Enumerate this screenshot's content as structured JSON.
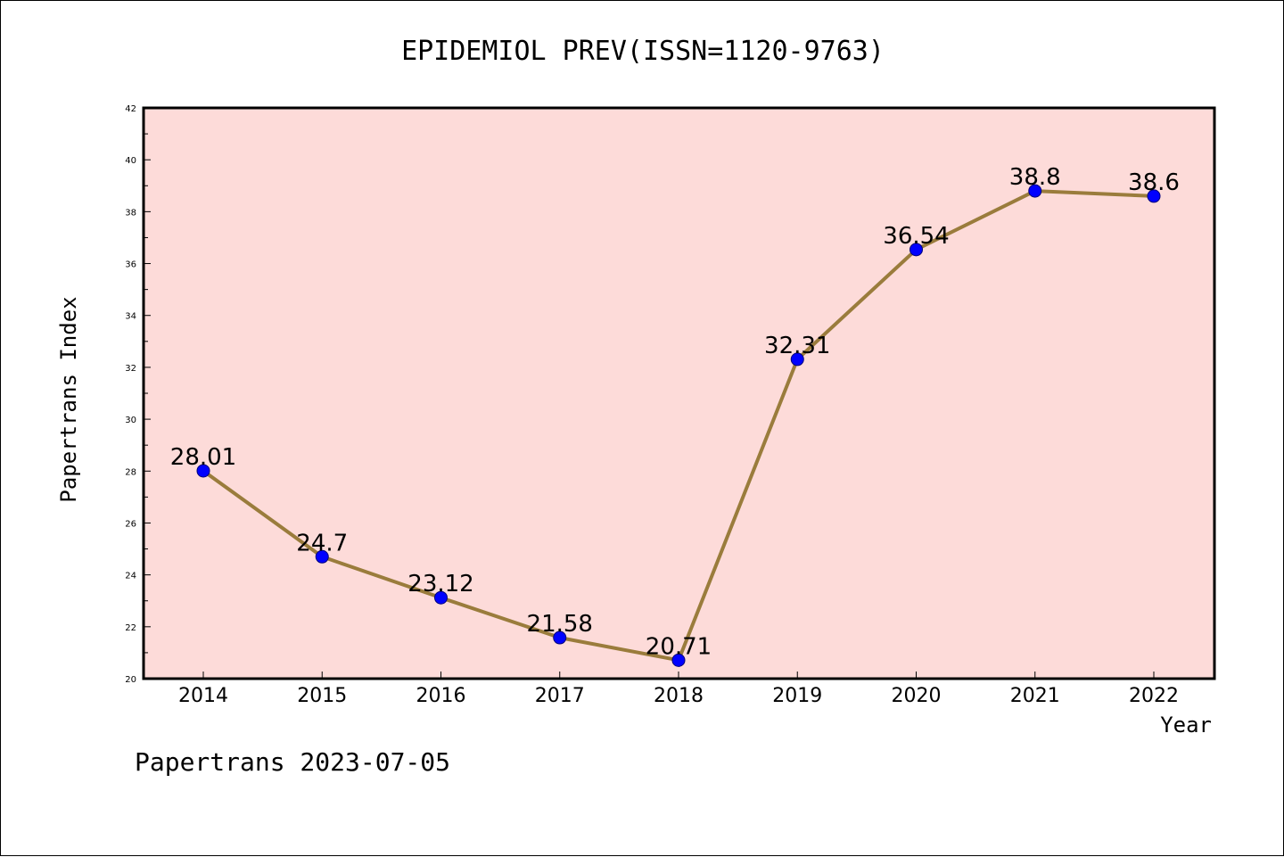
{
  "chart_data": {
    "type": "line",
    "title": "EPIDEMIOL PREV(ISSN=1120-9763)",
    "xlabel": "Year",
    "ylabel": "Papertrans Index",
    "x": [
      "2014",
      "2015",
      "2016",
      "2017",
      "2018",
      "2019",
      "2020",
      "2021",
      "2022"
    ],
    "series": [
      {
        "values": [
          28.01,
          24.7,
          23.12,
          21.58,
          20.71,
          32.31,
          36.54,
          38.8,
          38.6
        ],
        "data_labels": [
          "28.01",
          "24.7",
          "23.12",
          "21.58",
          "20.71",
          "32.31",
          "36.54",
          "38.8",
          "38.6"
        ]
      }
    ],
    "ylim": [
      20,
      42
    ],
    "yticks": [
      "20",
      "22",
      "24",
      "26",
      "28",
      "30",
      "32",
      "34",
      "36",
      "38",
      "40",
      "42"
    ],
    "grid": false,
    "colors": {
      "plot_background": "#fddbd9",
      "line": "#9a7c3c",
      "marker": "#0000ff"
    }
  },
  "footer": "Papertrans 2023-07-05"
}
